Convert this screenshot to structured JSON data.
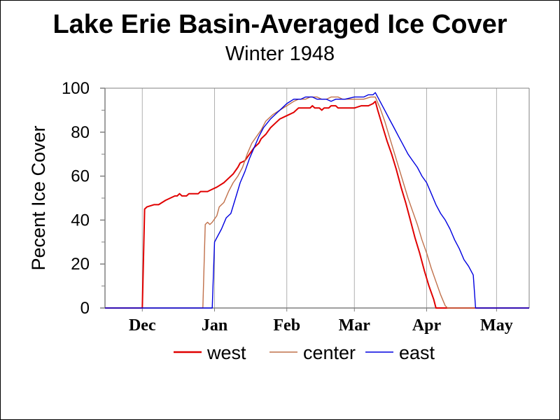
{
  "chart_data": {
    "type": "line",
    "title": "Lake Erie Basin-Averaged Ice Cover",
    "subtitle": "Winter 1948",
    "ylabel": "Pecent Ice Cover",
    "xlabel": "",
    "ylim": [
      0,
      100
    ],
    "xlim": [
      "1947-11-15",
      "1948-05-15"
    ],
    "yticks": [
      "0",
      "20",
      "40",
      "60",
      "80",
      "100"
    ],
    "xtick_labels": [
      {
        "label": "Dec",
        "date": "1947-12-01"
      },
      {
        "label": "Jan",
        "date": "1948-01-01"
      },
      {
        "label": "Feb",
        "date": "1948-02-01"
      },
      {
        "label": "Mar",
        "date": "1948-03-01"
      },
      {
        "label": "Apr",
        "date": "1948-04-01"
      },
      {
        "label": "May",
        "date": "1948-05-01"
      }
    ],
    "grid": "vertical at month boundaries",
    "legend_position": "bottom",
    "series": [
      {
        "name": "west",
        "color": "#e00000",
        "points": [
          [
            "1947-11-15",
            0
          ],
          [
            "1947-12-01",
            0
          ],
          [
            "1947-12-02",
            45
          ],
          [
            "1947-12-03",
            46
          ],
          [
            "1947-12-06",
            47
          ],
          [
            "1947-12-08",
            47
          ],
          [
            "1947-12-11",
            49
          ],
          [
            "1947-12-13",
            50
          ],
          [
            "1947-12-15",
            51
          ],
          [
            "1947-12-16",
            51
          ],
          [
            "1947-12-17",
            52
          ],
          [
            "1947-12-18",
            51
          ],
          [
            "1947-12-20",
            51
          ],
          [
            "1947-12-21",
            52
          ],
          [
            "1947-12-23",
            52
          ],
          [
            "1947-12-25",
            52
          ],
          [
            "1947-12-26",
            53
          ],
          [
            "1947-12-29",
            53
          ],
          [
            "1947-12-31",
            54
          ],
          [
            "1948-01-02",
            55
          ],
          [
            "1948-01-05",
            57
          ],
          [
            "1948-01-07",
            59
          ],
          [
            "1948-01-09",
            61
          ],
          [
            "1948-01-11",
            64
          ],
          [
            "1948-01-12",
            66
          ],
          [
            "1948-01-14",
            67
          ],
          [
            "1948-01-16",
            70
          ],
          [
            "1948-01-18",
            73
          ],
          [
            "1948-01-20",
            75
          ],
          [
            "1948-01-21",
            77
          ],
          [
            "1948-01-23",
            79
          ],
          [
            "1948-01-25",
            82
          ],
          [
            "1948-01-27",
            84
          ],
          [
            "1948-01-29",
            86
          ],
          [
            "1948-01-31",
            87
          ],
          [
            "1948-02-02",
            88
          ],
          [
            "1948-02-04",
            89
          ],
          [
            "1948-02-06",
            91
          ],
          [
            "1948-02-09",
            91
          ],
          [
            "1948-02-11",
            91
          ],
          [
            "1948-02-12",
            92
          ],
          [
            "1948-02-13",
            91
          ],
          [
            "1948-02-15",
            91
          ],
          [
            "1948-02-16",
            90
          ],
          [
            "1948-02-17",
            91
          ],
          [
            "1948-02-19",
            91
          ],
          [
            "1948-02-20",
            92
          ],
          [
            "1948-02-22",
            92
          ],
          [
            "1948-02-23",
            91
          ],
          [
            "1948-02-26",
            91
          ],
          [
            "1948-03-01",
            91
          ],
          [
            "1948-03-04",
            92
          ],
          [
            "1948-03-07",
            92
          ],
          [
            "1948-03-09",
            93
          ],
          [
            "1948-03-10",
            94
          ],
          [
            "1948-03-11",
            90
          ],
          [
            "1948-03-13",
            83
          ],
          [
            "1948-03-15",
            76
          ],
          [
            "1948-03-17",
            70
          ],
          [
            "1948-03-19",
            63
          ],
          [
            "1948-03-21",
            55
          ],
          [
            "1948-03-23",
            48
          ],
          [
            "1948-03-25",
            40
          ],
          [
            "1948-03-27",
            32
          ],
          [
            "1948-03-29",
            25
          ],
          [
            "1948-03-31",
            17
          ],
          [
            "1948-04-02",
            10
          ],
          [
            "1948-04-04",
            4
          ],
          [
            "1948-04-05",
            0
          ],
          [
            "1948-05-15",
            0
          ]
        ]
      },
      {
        "name": "center",
        "color": "#c0704a",
        "points": [
          [
            "1947-11-15",
            0
          ],
          [
            "1947-12-27",
            0
          ],
          [
            "1947-12-28",
            38
          ],
          [
            "1947-12-29",
            39
          ],
          [
            "1947-12-30",
            38
          ],
          [
            "1947-12-31",
            39
          ],
          [
            "1948-01-02",
            42
          ],
          [
            "1948-01-03",
            46
          ],
          [
            "1948-01-05",
            48
          ],
          [
            "1948-01-07",
            53
          ],
          [
            "1948-01-09",
            57
          ],
          [
            "1948-01-11",
            60
          ],
          [
            "1948-01-13",
            64
          ],
          [
            "1948-01-15",
            70
          ],
          [
            "1948-01-17",
            75
          ],
          [
            "1948-01-19",
            78
          ],
          [
            "1948-01-21",
            81
          ],
          [
            "1948-01-23",
            85
          ],
          [
            "1948-01-26",
            88
          ],
          [
            "1948-01-29",
            90
          ],
          [
            "1948-02-01",
            92
          ],
          [
            "1948-02-04",
            94
          ],
          [
            "1948-02-06",
            95
          ],
          [
            "1948-02-09",
            95
          ],
          [
            "1948-02-11",
            96
          ],
          [
            "1948-02-14",
            96
          ],
          [
            "1948-02-16",
            95
          ],
          [
            "1948-02-18",
            95
          ],
          [
            "1948-02-20",
            96
          ],
          [
            "1948-02-23",
            96
          ],
          [
            "1948-02-25",
            95
          ],
          [
            "1948-03-01",
            95
          ],
          [
            "1948-03-05",
            95
          ],
          [
            "1948-03-08",
            96
          ],
          [
            "1948-03-10",
            96
          ],
          [
            "1948-03-12",
            91
          ],
          [
            "1948-03-14",
            85
          ],
          [
            "1948-03-16",
            78
          ],
          [
            "1948-03-18",
            71
          ],
          [
            "1948-03-20",
            64
          ],
          [
            "1948-03-22",
            57
          ],
          [
            "1948-03-24",
            50
          ],
          [
            "1948-03-26",
            44
          ],
          [
            "1948-03-28",
            38
          ],
          [
            "1948-03-30",
            31
          ],
          [
            "1948-04-01",
            25
          ],
          [
            "1948-04-03",
            18
          ],
          [
            "1948-04-05",
            12
          ],
          [
            "1948-04-07",
            6
          ],
          [
            "1948-04-09",
            1
          ],
          [
            "1948-04-10",
            0
          ],
          [
            "1948-05-15",
            0
          ]
        ]
      },
      {
        "name": "east",
        "color": "#0000e0",
        "points": [
          [
            "1947-11-15",
            0
          ],
          [
            "1947-12-31",
            0
          ],
          [
            "1948-01-01",
            30
          ],
          [
            "1948-01-02",
            32
          ],
          [
            "1948-01-04",
            36
          ],
          [
            "1948-01-06",
            41
          ],
          [
            "1948-01-08",
            43
          ],
          [
            "1948-01-10",
            50
          ],
          [
            "1948-01-12",
            57
          ],
          [
            "1948-01-14",
            62
          ],
          [
            "1948-01-16",
            68
          ],
          [
            "1948-01-18",
            73
          ],
          [
            "1948-01-20",
            78
          ],
          [
            "1948-01-22",
            82
          ],
          [
            "1948-01-25",
            86
          ],
          [
            "1948-01-28",
            89
          ],
          [
            "1948-01-30",
            91
          ],
          [
            "1948-02-01",
            93
          ],
          [
            "1948-02-04",
            95
          ],
          [
            "1948-02-07",
            95
          ],
          [
            "1948-02-09",
            96
          ],
          [
            "1948-02-12",
            96
          ],
          [
            "1948-02-14",
            95
          ],
          [
            "1948-02-16",
            95
          ],
          [
            "1948-02-18",
            95
          ],
          [
            "1948-02-20",
            94
          ],
          [
            "1948-02-22",
            95
          ],
          [
            "1948-02-26",
            95
          ],
          [
            "1948-03-01",
            96
          ],
          [
            "1948-03-05",
            96
          ],
          [
            "1948-03-07",
            97
          ],
          [
            "1948-03-09",
            97
          ],
          [
            "1948-03-10",
            98
          ],
          [
            "1948-03-12",
            94
          ],
          [
            "1948-03-14",
            90
          ],
          [
            "1948-03-16",
            86
          ],
          [
            "1948-03-18",
            82
          ],
          [
            "1948-03-20",
            78
          ],
          [
            "1948-03-22",
            74
          ],
          [
            "1948-03-24",
            70
          ],
          [
            "1948-03-26",
            67
          ],
          [
            "1948-03-28",
            64
          ],
          [
            "1948-03-30",
            60
          ],
          [
            "1948-04-01",
            57
          ],
          [
            "1948-04-03",
            52
          ],
          [
            "1948-04-05",
            47
          ],
          [
            "1948-04-07",
            43
          ],
          [
            "1948-04-09",
            40
          ],
          [
            "1948-04-11",
            36
          ],
          [
            "1948-04-13",
            31
          ],
          [
            "1948-04-15",
            27
          ],
          [
            "1948-04-17",
            22
          ],
          [
            "1948-04-19",
            19
          ],
          [
            "1948-04-21",
            15
          ],
          [
            "1948-04-22",
            0
          ],
          [
            "1948-05-15",
            0
          ]
        ]
      }
    ]
  }
}
